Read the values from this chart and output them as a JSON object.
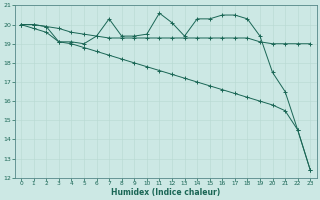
{
  "xlabel": "Humidex (Indice chaleur)",
  "bg_color": "#cce8e4",
  "grid_color_major": "#b8d8d2",
  "grid_color_minor": "#d4ecea",
  "line_color": "#1a6655",
  "xlim": [
    -0.5,
    23.5
  ],
  "ylim": [
    12,
    21
  ],
  "yticks": [
    12,
    13,
    14,
    15,
    16,
    17,
    18,
    19,
    20,
    21
  ],
  "xticks": [
    0,
    1,
    2,
    3,
    4,
    5,
    6,
    7,
    8,
    9,
    10,
    11,
    12,
    13,
    14,
    15,
    16,
    17,
    18,
    19,
    20,
    21,
    22,
    23
  ],
  "series_wiggly_x": [
    0,
    1,
    2,
    3,
    4,
    5,
    6,
    7,
    8,
    9,
    10,
    11,
    12,
    13,
    14,
    15,
    16,
    17,
    18,
    19,
    20,
    21,
    22,
    23
  ],
  "series_wiggly_y": [
    20.0,
    20.0,
    19.9,
    19.1,
    19.1,
    19.0,
    19.4,
    20.3,
    19.4,
    19.4,
    19.5,
    20.6,
    20.1,
    19.4,
    20.3,
    20.3,
    20.5,
    20.5,
    20.3,
    19.4,
    17.5,
    16.5,
    14.5,
    12.4
  ],
  "series_flat_x": [
    0,
    1,
    2,
    3,
    4,
    5,
    6,
    7,
    8,
    9,
    10,
    11,
    12,
    13,
    14,
    15,
    16,
    17,
    18,
    19,
    20,
    21,
    22,
    23
  ],
  "series_flat_y": [
    20.0,
    20.0,
    19.9,
    19.8,
    19.6,
    19.5,
    19.4,
    19.3,
    19.3,
    19.3,
    19.3,
    19.3,
    19.3,
    19.3,
    19.3,
    19.3,
    19.3,
    19.3,
    19.3,
    19.1,
    19.0,
    19.0,
    19.0,
    19.0
  ],
  "series_diag_x": [
    0,
    1,
    2,
    3,
    4,
    5,
    6,
    7,
    8,
    9,
    10,
    11,
    12,
    13,
    14,
    15,
    16,
    17,
    18,
    19,
    20,
    21,
    22,
    23
  ],
  "series_diag_y": [
    20.0,
    19.8,
    19.6,
    19.1,
    19.0,
    18.8,
    18.6,
    18.4,
    18.2,
    18.0,
    17.8,
    17.6,
    17.4,
    17.2,
    17.0,
    16.8,
    16.6,
    16.4,
    16.2,
    16.0,
    15.8,
    15.5,
    14.5,
    12.4
  ]
}
